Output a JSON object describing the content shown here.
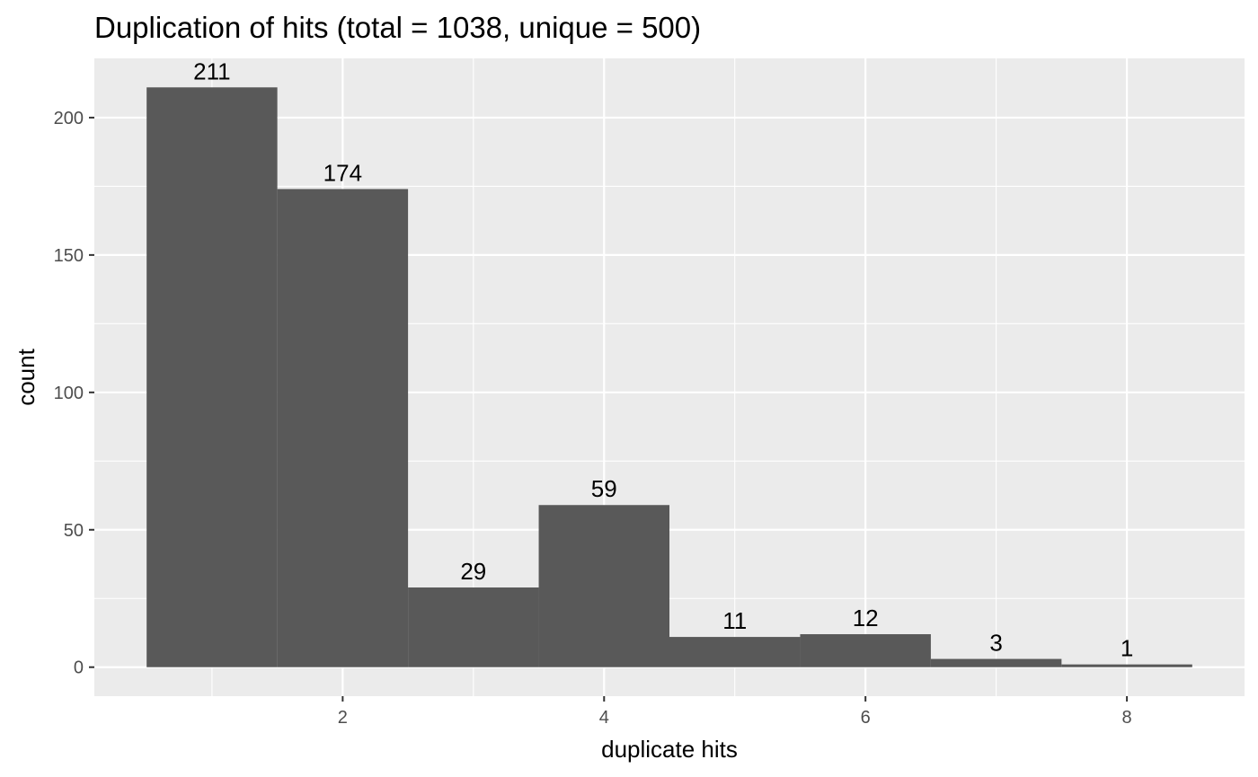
{
  "chart_data": {
    "type": "bar",
    "title": "Duplication of hits (total = 1038, unique = 500)",
    "xlabel": "duplicate hits",
    "ylabel": "count",
    "x": [
      1,
      2,
      3,
      4,
      5,
      6,
      7,
      8
    ],
    "values": [
      211,
      174,
      29,
      59,
      11,
      12,
      3,
      1
    ],
    "bar_width": 1,
    "xlim": [
      0.1,
      8.9
    ],
    "ylim": [
      -10.55,
      221.55
    ],
    "x_ticks": [
      2,
      4,
      6,
      8
    ],
    "x_tick_labels": [
      "2",
      "4",
      "6",
      "8"
    ],
    "y_ticks": [
      0,
      50,
      100,
      150,
      200
    ],
    "y_tick_labels": [
      "0",
      "50",
      "100",
      "150",
      "200"
    ],
    "grid": true,
    "legend": "none",
    "colors": {
      "panel_background": "#ebebeb",
      "grid": "#ffffff",
      "bar_fill": "#595959",
      "tick_label": "#4d4d4d",
      "tick_mark": "#333333",
      "text": "#000000"
    }
  }
}
